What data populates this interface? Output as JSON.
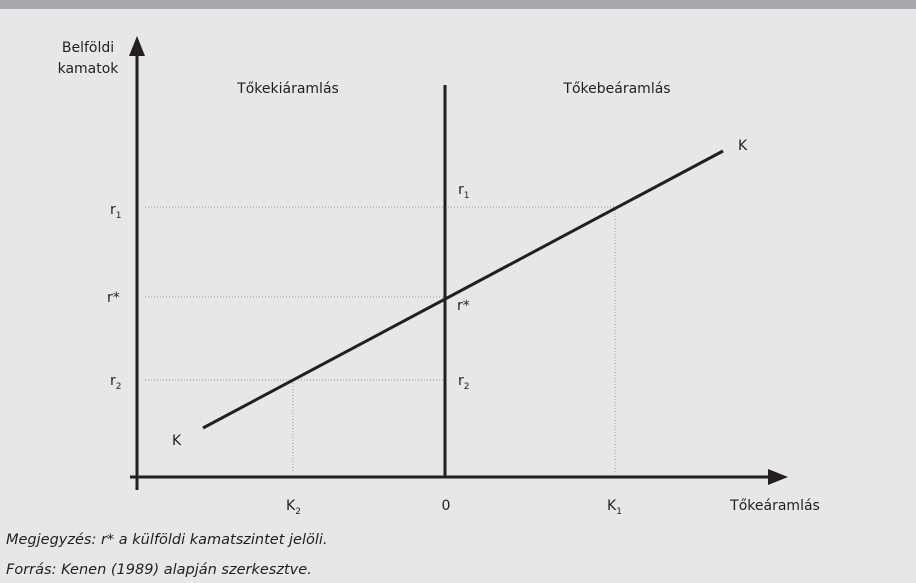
{
  "axis_labels": {
    "y": [
      "Belföldi",
      "kamatok"
    ],
    "x": "Tőkeáramlás"
  },
  "regions": {
    "left": "Tőkekiáramlás",
    "right": "Tőkebeáramlás"
  },
  "curve_label": "K",
  "y_labels": {
    "r1": {
      "base": "r",
      "sub": "1"
    },
    "rstar": "r*",
    "r2": {
      "base": "r",
      "sub": "2"
    }
  },
  "x_labels": {
    "k2": {
      "base": "K",
      "sub": "2"
    },
    "zero": "0",
    "k1": {
      "base": "K",
      "sub": "1"
    }
  },
  "notes": [
    "Megjegyzés: r* a külföldi kamatszintet jelöli.",
    "Forrás: Kenen (1989) alapján szerkesztve."
  ]
}
